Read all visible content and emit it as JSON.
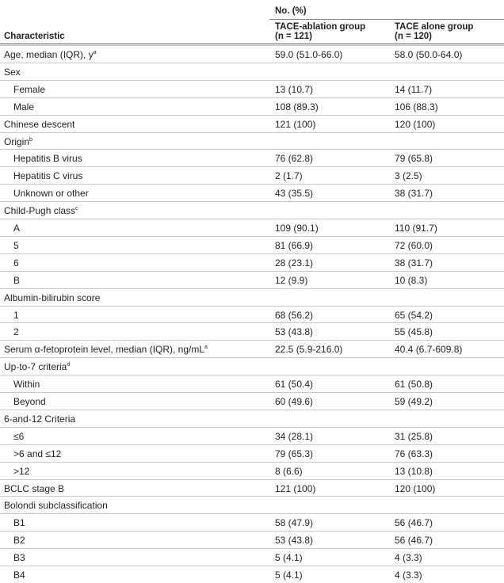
{
  "header": {
    "spanner": "No. (%)",
    "characteristic": "Characteristic",
    "columns": [
      {
        "name": "TACE-ablation group",
        "n": "(n = 121)"
      },
      {
        "name": "TACE alone group",
        "n": "(n = 120)"
      }
    ]
  },
  "rows": [
    {
      "label": "Age, median (IQR), y",
      "sup": "a",
      "values": [
        "59.0 (51.0-66.0)",
        "58.0 (50.0-64.0)"
      ]
    },
    {
      "label": "Sex",
      "children": [
        {
          "label": "Female",
          "values": [
            "13 (10.7)",
            "14 (11.7)"
          ]
        },
        {
          "label": "Male",
          "values": [
            "108 (89.3)",
            "106 (88.3)"
          ]
        }
      ]
    },
    {
      "label": "Chinese descent",
      "values": [
        "121 (100)",
        "120 (100)"
      ]
    },
    {
      "label": "Origin",
      "sup": "b",
      "children": [
        {
          "label": "Hepatitis B virus",
          "values": [
            "76 (62.8)",
            "79 (65.8)"
          ]
        },
        {
          "label": "Hepatitis C virus",
          "values": [
            "2 (1.7)",
            "3 (2.5)"
          ]
        },
        {
          "label": "Unknown or other",
          "values": [
            "43 (35.5)",
            "38 (31.7)"
          ]
        }
      ]
    },
    {
      "label": "Child-Pugh class",
      "sup": "c",
      "children": [
        {
          "label": "A",
          "values": [
            "109 (90.1)",
            "110 (91.7)"
          ]
        },
        {
          "label": "5",
          "values": [
            "81 (66.9)",
            "72 (60.0)"
          ]
        },
        {
          "label": "6",
          "values": [
            "28 (23.1)",
            "38 (31.7)"
          ]
        },
        {
          "label": "B",
          "values": [
            "12 (9.9)",
            "10 (8.3)"
          ]
        }
      ]
    },
    {
      "label": "Albumin-bilirubin score",
      "children": [
        {
          "label": "1",
          "values": [
            "68 (56.2)",
            "65 (54.2)"
          ]
        },
        {
          "label": "2",
          "values": [
            "53 (43.8)",
            "55 (45.8)"
          ]
        }
      ]
    },
    {
      "label": "Serum α-fetoprotein level, median (IQR), ng/mL",
      "sup": "a",
      "values": [
        "22.5 (5.9-216.0)",
        "40.4 (6.7-609.8)"
      ]
    },
    {
      "label": "Up-to-7 criteria",
      "sup": "d",
      "children": [
        {
          "label": "Within",
          "values": [
            "61 (50.4)",
            "61 (50.8)"
          ]
        },
        {
          "label": "Beyond",
          "values": [
            "60 (49.6)",
            "59 (49.2)"
          ]
        }
      ]
    },
    {
      "label": "6-and-12 Criteria",
      "children": [
        {
          "label": "≤6",
          "values": [
            "34 (28.1)",
            "31 (25.8)"
          ]
        },
        {
          "label": ">6 and ≤12",
          "values": [
            "79 (65.3)",
            "76 (63.3)"
          ]
        },
        {
          "label": ">12",
          "values": [
            "8 (6.6)",
            "13 (10.8)"
          ]
        }
      ]
    },
    {
      "label": "BCLC stage B",
      "values": [
        "121 (100)",
        "120 (100)"
      ]
    },
    {
      "label": "Bolondi subclassification",
      "children": [
        {
          "label": "B1",
          "values": [
            "58 (47.9)",
            "56 (46.7)"
          ]
        },
        {
          "label": "B2",
          "values": [
            "53 (43.8)",
            "56 (46.7)"
          ]
        },
        {
          "label": "B3",
          "values": [
            "5 (4.1)",
            "4 (3.3)"
          ]
        },
        {
          "label": "B4",
          "values": [
            "5 (4.1)",
            "4 (3.3)"
          ]
        }
      ]
    }
  ]
}
